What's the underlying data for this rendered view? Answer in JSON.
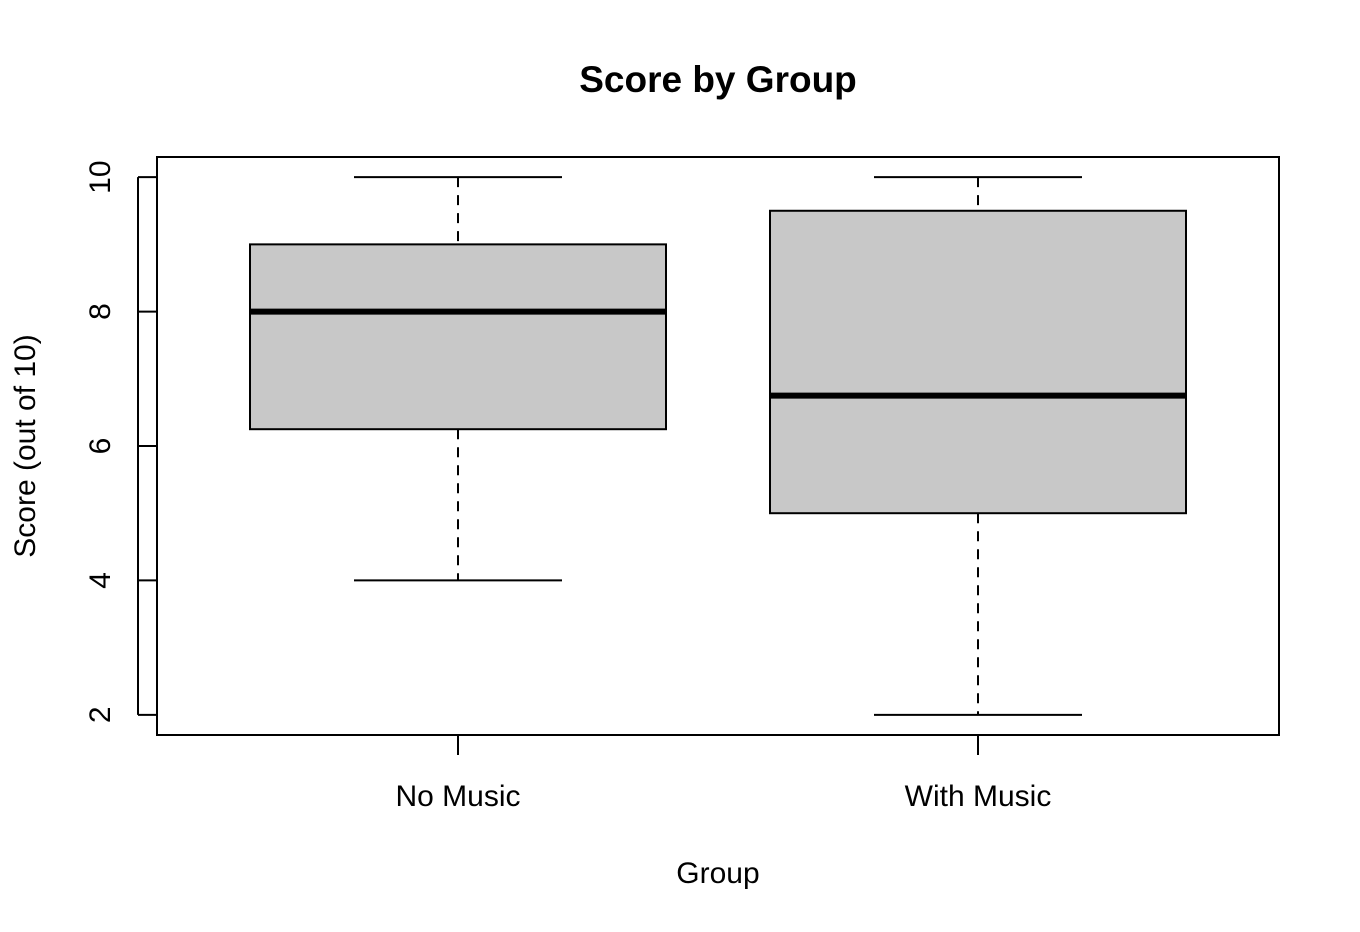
{
  "chart_data": {
    "type": "box",
    "title": "Score by Group",
    "xlabel": "Group",
    "ylabel": "Score (out of 10)",
    "categories": [
      "No Music",
      "With Music"
    ],
    "boxes": [
      {
        "category": "No Music",
        "min": 4,
        "q1": 6.25,
        "median": 8,
        "q3": 9,
        "max": 10
      },
      {
        "category": "With Music",
        "min": 2,
        "q1": 5,
        "median": 6.75,
        "q3": 9.5,
        "max": 10
      }
    ],
    "ylim": [
      1.7,
      10.3
    ],
    "yticks": [
      2,
      4,
      6,
      8,
      10
    ],
    "yticks_labels": [
      "2",
      "4",
      "6",
      "8",
      "10"
    ],
    "grid": false,
    "legend": "none",
    "colors": {
      "box_fill": "#c8c8c8",
      "stroke": "#000000"
    }
  }
}
